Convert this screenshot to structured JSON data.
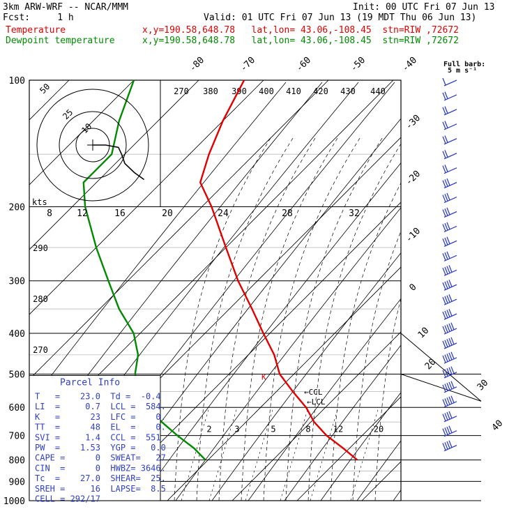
{
  "header": {
    "model": "3km ARW-WRF -- NCAR/MMM",
    "init": "Init: 00 UTC Fri 07 Jun 13",
    "fcst": "Fcst:     1 h",
    "valid": "Valid: 01 UTC Fri 07 Jun 13 (19 MDT Thu 06 Jun 13)",
    "temp_label": "Temperature",
    "temp_loc": "x,y=190.58,648.78   lat,lon= 43.06,-108.45  stn=RIW ,72672",
    "dew_label": "Dewpoint temperature",
    "dew_loc": "x,y=190.58,648.78   lat,lon= 43.06,-108.45  stn=RIW ,72672"
  },
  "colors": {
    "temperature": "#e00000",
    "dewpoint": "#008a00",
    "barb": "#3040c0"
  },
  "chart_data": {
    "type": "line",
    "title": "",
    "xlabel": "",
    "ylabel": "",
    "x_scale": "skew-T (temperature, deg C)",
    "y_scale": "log pressure (hPa)",
    "ylim": [
      1000,
      100
    ],
    "pressure_ticks": [
      "100",
      "200",
      "300",
      "400",
      "500",
      "600",
      "700",
      "800",
      "900",
      "1000"
    ],
    "isotherm_labels": [
      "-80",
      "-70",
      "-60",
      "-50",
      "-40",
      "-30",
      "-20",
      "-10",
      "0",
      "10",
      "20",
      "30",
      "40"
    ],
    "theta_labels": [
      "270",
      "380",
      "390",
      "400",
      "410",
      "420",
      "430",
      "440"
    ],
    "left_theta_labels": [
      "290",
      "280",
      "270"
    ],
    "mixing_ratio_labels": [
      "2",
      "3",
      "5",
      "8",
      "12",
      "20"
    ],
    "hodo_speed_labels": [
      "8",
      "12",
      "16",
      "20",
      "24",
      "28",
      "32"
    ],
    "hodo_ring_labels": [
      "50",
      "25",
      "10"
    ],
    "hodo_unit": "kts",
    "full_barb_label": "Full barb:",
    "full_barb_value": "5 m s⁻¹",
    "markers": {
      "ccl": "CCL",
      "lcl": "LCL",
      "k": "K"
    },
    "series": [
      {
        "name": "Temperature",
        "points": [
          [
            23.0,
            800
          ],
          [
            19.0,
            750
          ],
          [
            14.5,
            700
          ],
          [
            10.5,
            650
          ],
          [
            7.0,
            600
          ],
          [
            2.5,
            550
          ],
          [
            -2.2,
            500
          ],
          [
            -6.0,
            450
          ],
          [
            -11.0,
            400
          ],
          [
            -16.5,
            350
          ],
          [
            -23.0,
            300
          ],
          [
            -30.0,
            250
          ],
          [
            -38.5,
            200
          ],
          [
            -44.0,
            175
          ],
          [
            -47.0,
            150
          ],
          [
            -50.0,
            125
          ],
          [
            -53.0,
            100
          ]
        ]
      },
      {
        "name": "Dewpoint temperature",
        "points": [
          [
            -0.4,
            800
          ],
          [
            -4.0,
            750
          ],
          [
            -8.5,
            700
          ],
          [
            -13.0,
            650
          ],
          [
            -17.0,
            600
          ],
          [
            -21.0,
            550
          ],
          [
            -24.5,
            500
          ],
          [
            -27.0,
            450
          ],
          [
            -31.0,
            400
          ],
          [
            -37.0,
            350
          ],
          [
            -43.0,
            300
          ],
          [
            -50.0,
            250
          ],
          [
            -58.0,
            200
          ],
          [
            -62.0,
            175
          ],
          [
            -62.0,
            150
          ],
          [
            -66.0,
            125
          ],
          [
            -70.0,
            100
          ]
        ]
      }
    ],
    "hodograph": {
      "points": [
        [
          0,
          0
        ],
        [
          4,
          0
        ],
        [
          8,
          -1
        ],
        [
          9,
          -4
        ],
        [
          10,
          -8
        ],
        [
          13,
          -12
        ],
        [
          16,
          -15
        ]
      ]
    },
    "wind_barbs": {
      "direction_deg": [
        220,
        225,
        230,
        232,
        235,
        238,
        240,
        242,
        244,
        245,
        246,
        248,
        250,
        252,
        254,
        255,
        256,
        258,
        260,
        262,
        264,
        266,
        268,
        270,
        272,
        274
      ],
      "speed": [
        8,
        9,
        10,
        11,
        12,
        13,
        14,
        15,
        16,
        17,
        18,
        19,
        20,
        21,
        22,
        24,
        26,
        28,
        30,
        30,
        30,
        30,
        28,
        26,
        24,
        22
      ]
    },
    "parcel_info": {
      "title": "Parcel  Info",
      "rows": [
        "T   =    23.0  Td =  -0.4",
        "LI  =     0.7  LCL =  584.",
        "K   =      23  LFC =    0.",
        "TT  =      48  EL  =    0.",
        "SVI =     1.4  CCL =  551.",
        "PW  =    1.53  YGP =   0.0",
        "CAPE =      0  SWEAT=   27",
        "CIN  =      0  HWBZ= 3646.",
        "Tc  =    27.0  SHEAR=  25.",
        "SREH =     16  LAPSE=  8.5",
        "CELL = 292/17"
      ]
    }
  }
}
